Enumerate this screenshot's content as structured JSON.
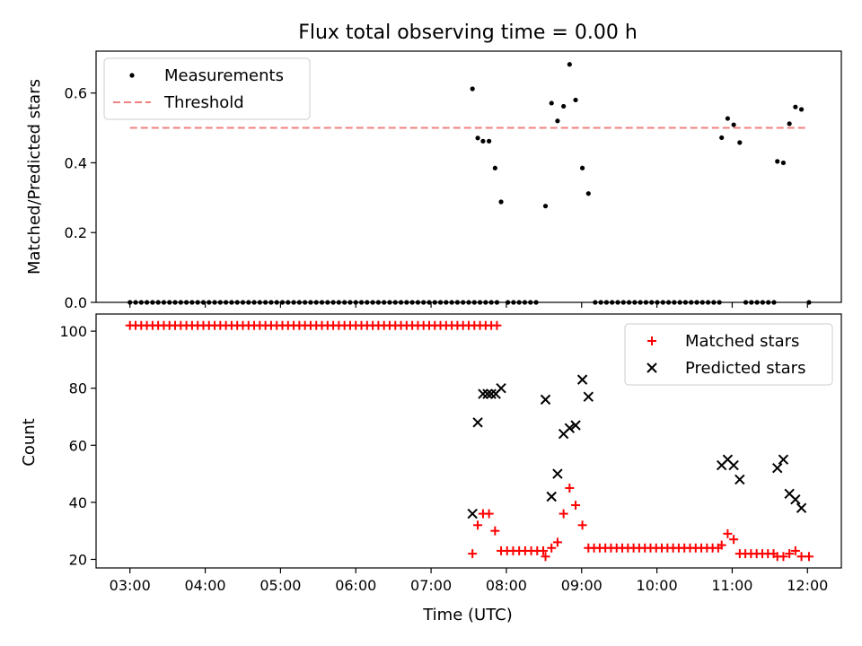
{
  "title": "Flux total observing time = 0.00 h",
  "chart_data": [
    {
      "type": "scatter",
      "ylabel": "Matched/Predicted stars",
      "ylim": [
        0,
        0.72
      ],
      "xlim": [
        2.55,
        12.45
      ],
      "y_ticks": [
        0,
        0.2,
        0.4,
        0.6
      ],
      "y_tick_labels": [
        "0.0",
        "0.2",
        "0.4",
        "0.6"
      ],
      "legend": {
        "position": "top-left",
        "entries": [
          "Measurements",
          "Threshold"
        ]
      },
      "threshold": {
        "name": "Threshold",
        "y": 0.5,
        "x_start": 3.0,
        "x_end": 12.0,
        "color": "#f08080"
      },
      "series": [
        {
          "name": "Measurements",
          "color": "#000000",
          "points": [
            [
              7.55,
              0.612
            ],
            [
              7.62,
              0.471
            ],
            [
              7.69,
              0.462
            ],
            [
              7.77,
              0.462
            ],
            [
              7.85,
              0.385
            ],
            [
              7.93,
              0.288
            ],
            [
              8.52,
              0.276
            ],
            [
              8.6,
              0.571
            ],
            [
              8.68,
              0.52
            ],
            [
              8.76,
              0.562
            ],
            [
              8.84,
              0.682
            ],
            [
              8.92,
              0.58
            ],
            [
              9.01,
              0.385
            ],
            [
              9.09,
              0.312
            ],
            [
              10.86,
              0.472
            ],
            [
              10.94,
              0.527
            ],
            [
              11.02,
              0.509
            ],
            [
              11.1,
              0.458
            ],
            [
              11.6,
              0.404
            ],
            [
              11.68,
              0.4
            ],
            [
              11.76,
              0.512
            ],
            [
              11.84,
              0.56
            ],
            [
              11.92,
              0.553
            ],
            [
              12.02,
              0.0
            ]
          ],
          "zero_blocks": [
            {
              "start": 3.0,
              "step": 0.075,
              "count": 66
            },
            {
              "start": 8.02,
              "step": 0.075,
              "count": 6
            },
            {
              "start": 9.18,
              "step": 0.075,
              "count": 23
            },
            {
              "start": 11.18,
              "step": 0.075,
              "count": 6
            }
          ]
        }
      ]
    },
    {
      "type": "scatter",
      "ylabel": "Count",
      "xlabel": "Time (UTC)",
      "ylim": [
        17,
        106
      ],
      "xlim": [
        2.55,
        12.45
      ],
      "y_ticks": [
        20,
        40,
        60,
        80,
        100
      ],
      "y_tick_labels": [
        "20",
        "40",
        "60",
        "80",
        "100"
      ],
      "x_ticks": [
        3,
        4,
        5,
        6,
        7,
        8,
        9,
        10,
        11,
        12
      ],
      "x_tick_labels": [
        "03:00",
        "04:00",
        "05:00",
        "06:00",
        "07:00",
        "08:00",
        "09:00",
        "10:00",
        "11:00",
        "12:00"
      ],
      "legend": {
        "position": "top-right",
        "entries": [
          "Matched stars",
          "Predicted stars"
        ]
      },
      "series": [
        {
          "name": "Matched stars",
          "marker": "plus",
          "color": "#ff0000",
          "blocks": [
            {
              "start": 3.0,
              "step": 0.075,
              "count": 66,
              "value": 102
            }
          ],
          "points": [
            [
              7.55,
              22
            ],
            [
              7.62,
              32
            ],
            [
              7.69,
              36
            ],
            [
              7.77,
              36
            ],
            [
              7.85,
              30
            ],
            [
              7.93,
              23
            ],
            [
              8.01,
              23
            ],
            [
              8.09,
              23
            ],
            [
              8.17,
              23
            ],
            [
              8.25,
              23
            ],
            [
              8.33,
              23
            ],
            [
              8.41,
              23
            ],
            [
              8.49,
              23
            ],
            [
              8.52,
              21
            ],
            [
              8.6,
              24
            ],
            [
              8.68,
              26
            ],
            [
              8.76,
              36
            ],
            [
              8.84,
              45
            ],
            [
              8.92,
              39
            ],
            [
              9.01,
              32
            ],
            [
              10.86,
              25
            ],
            [
              10.94,
              29
            ],
            [
              11.02,
              27
            ],
            [
              11.6,
              21
            ],
            [
              11.68,
              21
            ],
            [
              11.76,
              22
            ],
            [
              11.84,
              23
            ],
            [
              11.92,
              21
            ],
            [
              12.02,
              21
            ]
          ],
          "extra_blocks": [
            {
              "start": 9.09,
              "step": 0.075,
              "count": 24,
              "value": 24
            },
            {
              "start": 11.1,
              "step": 0.075,
              "count": 7,
              "value": 22
            }
          ]
        },
        {
          "name": "Predicted stars",
          "marker": "x",
          "color": "#000000",
          "points": [
            [
              7.55,
              36
            ],
            [
              7.62,
              68
            ],
            [
              7.69,
              78
            ],
            [
              7.75,
              78
            ],
            [
              7.8,
              78
            ],
            [
              7.86,
              78
            ],
            [
              7.93,
              80
            ],
            [
              8.52,
              76
            ],
            [
              8.6,
              42
            ],
            [
              8.68,
              50
            ],
            [
              8.76,
              64
            ],
            [
              8.84,
              66
            ],
            [
              8.92,
              67
            ],
            [
              9.01,
              83
            ],
            [
              9.09,
              77
            ],
            [
              10.86,
              53
            ],
            [
              10.94,
              55
            ],
            [
              11.02,
              53
            ],
            [
              11.1,
              48
            ],
            [
              11.6,
              52
            ],
            [
              11.68,
              55
            ],
            [
              11.76,
              43
            ],
            [
              11.84,
              41
            ],
            [
              11.92,
              38
            ]
          ]
        }
      ]
    }
  ]
}
